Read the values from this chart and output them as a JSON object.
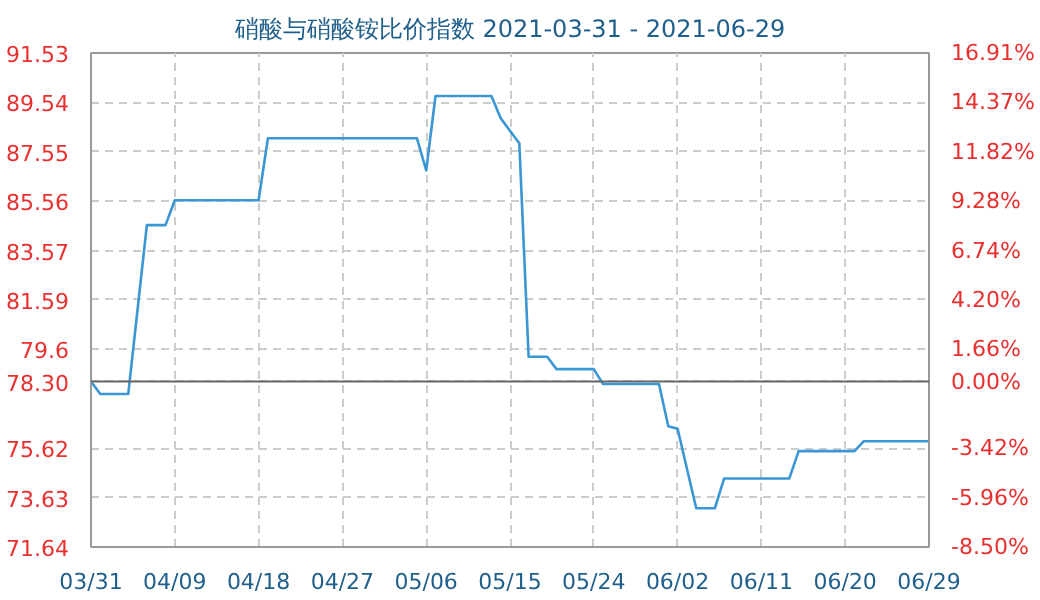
{
  "chart_data": {
    "type": "line",
    "title": "硝酸与硝酸铵比价指数 2021-03-31 - 2021-06-29",
    "x": [
      "2021-03-31",
      "2021-04-01",
      "2021-04-04",
      "2021-04-06",
      "2021-04-08",
      "2021-04-09",
      "2021-04-18",
      "2021-04-19",
      "2021-05-05",
      "2021-05-06",
      "2021-05-07",
      "2021-05-13",
      "2021-05-14",
      "2021-05-16",
      "2021-05-17",
      "2021-05-19",
      "2021-05-20",
      "2021-05-24",
      "2021-05-25",
      "2021-05-31",
      "2021-06-01",
      "2021-06-02",
      "2021-06-04",
      "2021-06-06",
      "2021-06-07",
      "2021-06-14",
      "2021-06-15",
      "2021-06-21",
      "2021-06-22",
      "2021-06-29"
    ],
    "series": [
      {
        "color": "#3a97d4",
        "values": [
          78.3,
          77.8,
          77.8,
          84.6,
          84.6,
          85.6,
          85.6,
          88.1,
          88.1,
          86.8,
          89.8,
          89.8,
          88.9,
          87.9,
          79.3,
          79.3,
          78.8,
          78.8,
          78.2,
          78.2,
          76.5,
          76.4,
          73.2,
          73.2,
          74.4,
          74.4,
          75.5,
          75.5,
          75.9,
          75.9
        ]
      }
    ],
    "xlim": [
      "2021-03-31",
      "2021-06-29"
    ],
    "xticks": [
      {
        "value": "2021-03-31",
        "label": "03/31"
      },
      {
        "value": "2021-04-09",
        "label": "04/09"
      },
      {
        "value": "2021-04-18",
        "label": "04/18"
      },
      {
        "value": "2021-04-27",
        "label": "04/27"
      },
      {
        "value": "2021-05-06",
        "label": "05/06"
      },
      {
        "value": "2021-05-15",
        "label": "05/15"
      },
      {
        "value": "2021-05-24",
        "label": "05/24"
      },
      {
        "value": "2021-06-02",
        "label": "06/02"
      },
      {
        "value": "2021-06-11",
        "label": "06/11"
      },
      {
        "value": "2021-06-20",
        "label": "06/20"
      },
      {
        "value": "2021-06-29",
        "label": "06/29"
      }
    ],
    "ylim": [
      71.64,
      91.53
    ],
    "yticks": [
      71.64,
      73.63,
      75.62,
      {
        "value": 78.3,
        "label": "78.30"
      },
      79.6,
      81.59,
      83.57,
      85.56,
      87.55,
      89.54,
      91.53
    ],
    "y2lim": [
      -8.5,
      16.91
    ],
    "y2ticks": [
      {
        "value": -8.5,
        "label": "-8.50%"
      },
      {
        "value": -5.96,
        "label": "-5.96%"
      },
      {
        "value": -3.42,
        "label": "-3.42%"
      },
      {
        "value": 0,
        "label": "0.00%"
      },
      {
        "value": 1.66,
        "label": "1.66%"
      },
      {
        "value": 4.2,
        "label": "4.20%"
      },
      {
        "value": 6.74,
        "label": "6.74%"
      },
      {
        "value": 9.28,
        "label": "9.28%"
      },
      {
        "value": 11.82,
        "label": "11.82%"
      },
      {
        "value": 14.37,
        "label": "14.37%"
      },
      {
        "value": 16.91,
        "label": "16.91%"
      }
    ],
    "ref_lines": [
      {
        "axis": "y",
        "value": 78.3,
        "color": "#666666"
      }
    ],
    "grid": true,
    "marker": "none",
    "line_style": "solid"
  }
}
